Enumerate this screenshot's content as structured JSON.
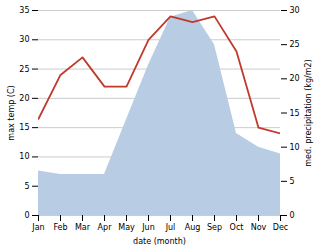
{
  "chart_data": {
    "type": "line",
    "categories": [
      "Jan",
      "Feb",
      "Mar",
      "Apr",
      "May",
      "Jun",
      "Jul",
      "Aug",
      "Sep",
      "Oct",
      "Nov",
      "Dec"
    ],
    "xlabel": "date (month)",
    "ylabel": "max temp (C)",
    "y2label": "med. precipitation (kg/m2)",
    "series": [
      {
        "type": "area",
        "axis": "y2",
        "color": "#b8cce4",
        "values": [
          6.5,
          6.0,
          6.0,
          6.0,
          14.0,
          22.0,
          29.0,
          30.0,
          25.0,
          12.0,
          10.0,
          9.0
        ]
      },
      {
        "type": "line",
        "color": "#c0392b",
        "values": [
          16.5,
          24.0,
          27.0,
          22.0,
          22.0,
          30.0,
          34.0,
          33.0,
          34.0,
          28.0,
          15.0,
          14.0
        ]
      }
    ],
    "ylim": [
      0,
      35
    ],
    "yticks": [
      0,
      5,
      10,
      15,
      20,
      25,
      30,
      35
    ],
    "y2lim": [
      0,
      30
    ],
    "y2ticks": [
      0,
      5,
      10,
      15,
      20,
      25,
      30
    ],
    "grid": true
  }
}
